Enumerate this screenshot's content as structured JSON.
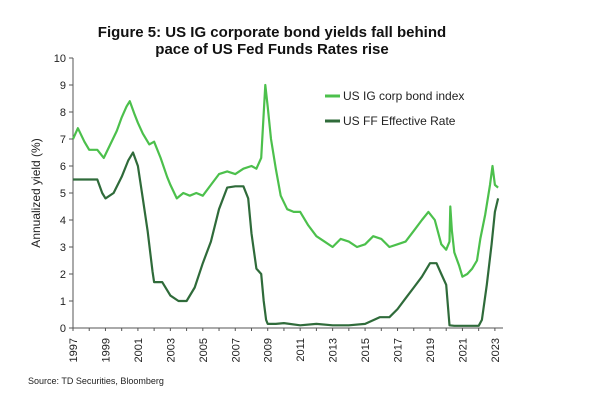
{
  "chart_data": {
    "type": "line",
    "title_line1": "Figure 5: US IG corporate bond yields fall behind",
    "title_line2": "pace of US Fed Funds Rates rise",
    "ylabel": "Annualized yield (%)",
    "source": "Source: TD Securities, Bloomberg",
    "xlim": [
      1997,
      2023.5
    ],
    "ylim": [
      0,
      10
    ],
    "yticks": [
      0,
      1,
      2,
      3,
      4,
      5,
      6,
      7,
      8,
      9,
      10
    ],
    "xticks": [
      1997,
      1999,
      2001,
      2003,
      2005,
      2007,
      2009,
      2011,
      2013,
      2015,
      2017,
      2019,
      2021,
      2023
    ],
    "legend_position": "top-right",
    "grid": false,
    "series": [
      {
        "name": "US IG corp bond index",
        "color": "#4cc04c",
        "x": [
          1997.0,
          1997.3,
          1997.7,
          1998.0,
          1998.5,
          1998.9,
          1999.3,
          1999.7,
          2000.0,
          2000.3,
          2000.5,
          2000.8,
          2001.0,
          2001.3,
          2001.7,
          2002.0,
          2002.4,
          2002.8,
          2003.0,
          2003.4,
          2003.8,
          2004.2,
          2004.6,
          2005.0,
          2005.5,
          2006.0,
          2006.5,
          2007.0,
          2007.5,
          2008.0,
          2008.3,
          2008.6,
          2008.85,
          2009.0,
          2009.2,
          2009.5,
          2009.8,
          2010.2,
          2010.6,
          2011.0,
          2011.5,
          2012.0,
          2012.5,
          2013.0,
          2013.5,
          2014.0,
          2014.5,
          2015.0,
          2015.5,
          2016.0,
          2016.5,
          2017.0,
          2017.5,
          2018.0,
          2018.5,
          2018.9,
          2019.3,
          2019.7,
          2020.0,
          2020.2,
          2020.25,
          2020.35,
          2020.5,
          2020.8,
          2021.0,
          2021.3,
          2021.6,
          2021.9,
          2022.1,
          2022.4,
          2022.7,
          2022.85,
          2023.0,
          2023.2
        ],
        "y": [
          7.0,
          7.4,
          6.9,
          6.6,
          6.6,
          6.3,
          6.8,
          7.3,
          7.8,
          8.2,
          8.4,
          7.9,
          7.6,
          7.2,
          6.8,
          6.9,
          6.3,
          5.6,
          5.3,
          4.8,
          5.0,
          4.9,
          5.0,
          4.9,
          5.3,
          5.7,
          5.8,
          5.7,
          5.9,
          6.0,
          5.9,
          6.3,
          9.0,
          8.2,
          7.0,
          5.9,
          4.9,
          4.4,
          4.3,
          4.3,
          3.8,
          3.4,
          3.2,
          3.0,
          3.3,
          3.2,
          3.0,
          3.1,
          3.4,
          3.3,
          3.0,
          3.1,
          3.2,
          3.6,
          4.0,
          4.3,
          4.0,
          3.1,
          2.9,
          3.2,
          4.5,
          3.6,
          2.8,
          2.3,
          1.9,
          2.0,
          2.2,
          2.5,
          3.3,
          4.2,
          5.3,
          6.0,
          5.3,
          5.2
        ]
      },
      {
        "name": "US FF Effective Rate",
        "color": "#2f6b3a",
        "x": [
          1997.0,
          1997.5,
          1998.0,
          1998.5,
          1998.8,
          1999.0,
          1999.5,
          2000.0,
          2000.4,
          2000.7,
          2001.0,
          2001.3,
          2001.6,
          2001.9,
          2002.0,
          2002.5,
          2003.0,
          2003.5,
          2004.0,
          2004.5,
          2005.0,
          2005.5,
          2006.0,
          2006.5,
          2007.0,
          2007.5,
          2007.8,
          2008.0,
          2008.3,
          2008.6,
          2008.75,
          2008.9,
          2009.0,
          2009.5,
          2010.0,
          2011.0,
          2012.0,
          2013.0,
          2014.0,
          2015.0,
          2015.9,
          2016.5,
          2017.0,
          2017.5,
          2018.0,
          2018.5,
          2019.0,
          2019.4,
          2019.7,
          2020.0,
          2020.2,
          2020.5,
          2021.0,
          2021.5,
          2022.0,
          2022.2,
          2022.5,
          2022.8,
          2023.0,
          2023.2
        ],
        "y": [
          5.5,
          5.5,
          5.5,
          5.5,
          5.0,
          4.8,
          5.0,
          5.6,
          6.2,
          6.5,
          6.0,
          4.8,
          3.6,
          2.1,
          1.7,
          1.7,
          1.2,
          1.0,
          1.0,
          1.5,
          2.4,
          3.2,
          4.4,
          5.2,
          5.25,
          5.25,
          4.8,
          3.5,
          2.2,
          2.0,
          1.0,
          0.3,
          0.15,
          0.15,
          0.18,
          0.1,
          0.15,
          0.1,
          0.1,
          0.15,
          0.4,
          0.4,
          0.7,
          1.1,
          1.5,
          1.9,
          2.4,
          2.4,
          2.0,
          1.6,
          0.1,
          0.08,
          0.08,
          0.08,
          0.08,
          0.3,
          1.6,
          3.1,
          4.3,
          4.8
        ]
      }
    ]
  }
}
